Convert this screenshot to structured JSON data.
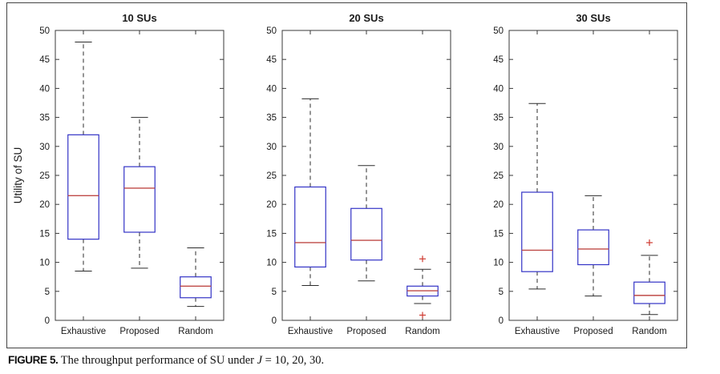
{
  "figure": {
    "caption_label": "FIGURE 5.",
    "caption_text": " The throughput performance of SU under ",
    "caption_var": "J",
    "caption_rest": " = 10, 20, 30."
  },
  "colors": {
    "box_stroke": "#3333c6",
    "median": "#bf4a47",
    "whisker": "#2b2b2b",
    "cap": "#2b2b2b",
    "outlier": "#cf3a30",
    "axis": "#3a3a3a",
    "text": "#1a1a1a"
  },
  "chart_data": [
    {
      "type": "boxplot",
      "title": "10 SUs",
      "ylabel": "Utility of SU",
      "ylim": [
        0,
        50
      ],
      "yticks": [
        0,
        5,
        10,
        15,
        20,
        25,
        30,
        35,
        40,
        45,
        50
      ],
      "categories": [
        "Exhaustive",
        "Proposed",
        "Random"
      ],
      "boxes": [
        {
          "whisker_low": 8.5,
          "q1": 14.0,
          "median": 21.5,
          "q3": 32.0,
          "whisker_high": 48.0,
          "outliers": []
        },
        {
          "whisker_low": 9.0,
          "q1": 15.2,
          "median": 22.8,
          "q3": 26.5,
          "whisker_high": 35.0,
          "outliers": []
        },
        {
          "whisker_low": 2.4,
          "q1": 3.9,
          "median": 5.9,
          "q3": 7.5,
          "whisker_high": 12.5,
          "outliers": []
        }
      ]
    },
    {
      "type": "boxplot",
      "title": "20 SUs",
      "ylabel": "",
      "ylim": [
        0,
        50
      ],
      "yticks": [
        0,
        5,
        10,
        15,
        20,
        25,
        30,
        35,
        40,
        45,
        50
      ],
      "categories": [
        "Exhaustive",
        "Proposed",
        "Random"
      ],
      "boxes": [
        {
          "whisker_low": 6.0,
          "q1": 9.2,
          "median": 13.4,
          "q3": 23.0,
          "whisker_high": 38.2,
          "outliers": []
        },
        {
          "whisker_low": 6.8,
          "q1": 10.4,
          "median": 13.8,
          "q3": 19.3,
          "whisker_high": 26.7,
          "outliers": []
        },
        {
          "whisker_low": 2.9,
          "q1": 4.2,
          "median": 5.1,
          "q3": 5.9,
          "whisker_high": 8.8,
          "outliers": [
            10.6,
            0.9
          ]
        }
      ]
    },
    {
      "type": "boxplot",
      "title": "30 SUs",
      "ylabel": "",
      "ylim": [
        0,
        50
      ],
      "yticks": [
        0,
        5,
        10,
        15,
        20,
        25,
        30,
        35,
        40,
        45,
        50
      ],
      "categories": [
        "Exhaustive",
        "Proposed",
        "Random"
      ],
      "boxes": [
        {
          "whisker_low": 5.4,
          "q1": 8.4,
          "median": 12.1,
          "q3": 22.1,
          "whisker_high": 37.4,
          "outliers": []
        },
        {
          "whisker_low": 4.2,
          "q1": 9.6,
          "median": 12.3,
          "q3": 15.6,
          "whisker_high": 21.5,
          "outliers": []
        },
        {
          "whisker_low": 1.0,
          "q1": 2.9,
          "median": 4.3,
          "q3": 6.6,
          "whisker_high": 11.2,
          "outliers": [
            13.4
          ]
        }
      ]
    }
  ]
}
